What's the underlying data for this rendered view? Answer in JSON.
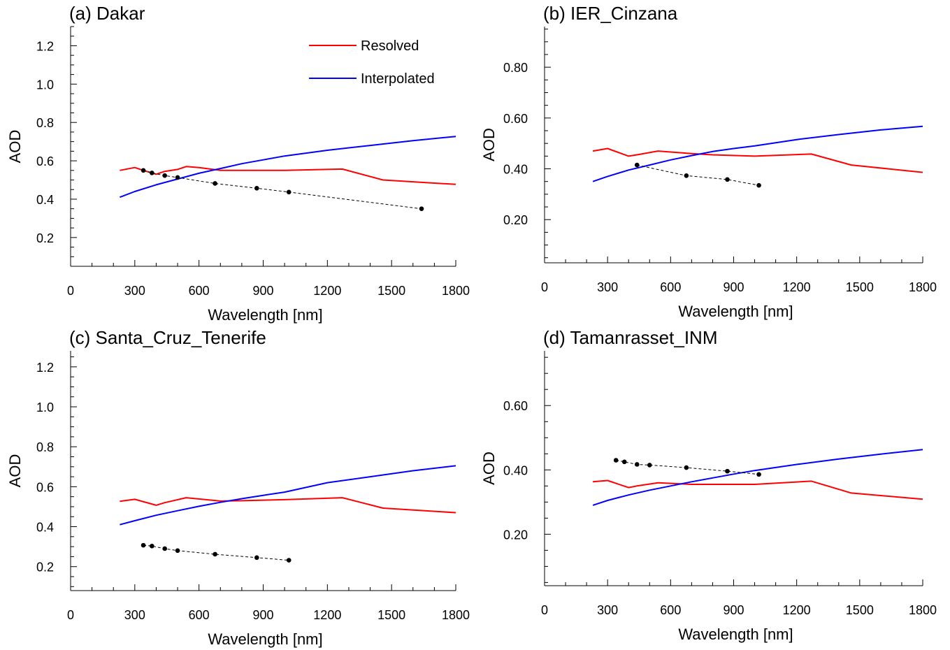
{
  "chart_data": [
    {
      "type": "line",
      "title": "(a) Dakar",
      "xlabel": "Wavelength [nm]",
      "ylabel": "AOD",
      "xlim": [
        0,
        1800
      ],
      "ylim": [
        0.05,
        1.3
      ],
      "xticks": [
        0,
        300,
        600,
        900,
        1200,
        1500,
        1800
      ],
      "xtick_labels": [
        "0",
        "300",
        "600",
        "900",
        "1200",
        "1500",
        "1800"
      ],
      "yticks": [
        0.2,
        0.4,
        0.6,
        0.8,
        1.0,
        1.2
      ],
      "ytick_labels": [
        "0.2",
        "0.4",
        "0.6",
        "0.8",
        "1.0",
        "1.2"
      ],
      "legend": {
        "position": "top-right",
        "show": true
      },
      "series": [
        {
          "name": "Resolved",
          "color": "#ff0000",
          "style": "solid",
          "x": [
            230,
            300,
            340,
            400,
            440,
            500,
            540,
            600,
            700,
            1000,
            1270,
            1460,
            1800
          ],
          "y": [
            0.55,
            0.565,
            0.55,
            0.53,
            0.545,
            0.555,
            0.57,
            0.565,
            0.55,
            0.55,
            0.557,
            0.5,
            0.477
          ]
        },
        {
          "name": "Interpolated",
          "color": "#0000ff",
          "style": "solid",
          "x": [
            230,
            300,
            400,
            500,
            600,
            700,
            800,
            900,
            1000,
            1200,
            1400,
            1600,
            1800
          ],
          "y": [
            0.41,
            0.44,
            0.475,
            0.505,
            0.535,
            0.56,
            0.585,
            0.605,
            0.625,
            0.655,
            0.68,
            0.705,
            0.727
          ]
        },
        {
          "name": "",
          "color": "#000000",
          "style": "dashed-markers",
          "x": [
            340,
            380,
            440,
            500,
            675,
            870,
            1020,
            1640
          ],
          "y": [
            0.55,
            0.537,
            0.523,
            0.513,
            0.482,
            0.457,
            0.437,
            0.35
          ]
        }
      ]
    },
    {
      "type": "line",
      "title": "(b) IER_Cinzana",
      "xlabel": "Wavelength [nm]",
      "ylabel": "AOD",
      "xlim": [
        0,
        1800
      ],
      "ylim": [
        0.03,
        0.96
      ],
      "xticks": [
        0,
        300,
        600,
        900,
        1200,
        1500,
        1800
      ],
      "xtick_labels": [
        "0",
        "300",
        "600",
        "900",
        "1200",
        "1500",
        "1800"
      ],
      "yticks": [
        0.2,
        0.4,
        0.6,
        0.8
      ],
      "ytick_labels": [
        "0.20",
        "0.40",
        "0.60",
        "0.80"
      ],
      "legend": {
        "show": false
      },
      "series": [
        {
          "name": "",
          "color": "#ff0000",
          "style": "solid",
          "x": [
            230,
            300,
            400,
            440,
            540,
            700,
            800,
            1000,
            1270,
            1460,
            1800
          ],
          "y": [
            0.47,
            0.48,
            0.45,
            0.455,
            0.47,
            0.46,
            0.455,
            0.45,
            0.458,
            0.415,
            0.386
          ]
        },
        {
          "name": "",
          "color": "#0000ff",
          "style": "solid",
          "x": [
            230,
            300,
            400,
            500,
            600,
            700,
            800,
            900,
            1000,
            1200,
            1400,
            1600,
            1800
          ],
          "y": [
            0.35,
            0.37,
            0.395,
            0.415,
            0.435,
            0.452,
            0.468,
            0.48,
            0.49,
            0.515,
            0.535,
            0.553,
            0.567
          ]
        },
        {
          "name": "",
          "color": "#000000",
          "style": "dashed-markers",
          "x": [
            440,
            675,
            870,
            1020
          ],
          "y": [
            0.415,
            0.373,
            0.358,
            0.335
          ]
        }
      ]
    },
    {
      "type": "line",
      "title": "(c) Santa_Cruz_Tenerife",
      "xlabel": "Wavelength [nm]",
      "ylabel": "AOD",
      "xlim": [
        0,
        1800
      ],
      "ylim": [
        0.08,
        1.28
      ],
      "xticks": [
        0,
        300,
        600,
        900,
        1200,
        1500,
        1800
      ],
      "xtick_labels": [
        "0",
        "300",
        "600",
        "900",
        "1200",
        "1500",
        "1800"
      ],
      "yticks": [
        0.2,
        0.4,
        0.6,
        0.8,
        1.0,
        1.2
      ],
      "ytick_labels": [
        "0.2",
        "0.4",
        "0.6",
        "0.8",
        "1.0",
        "1.2"
      ],
      "legend": {
        "show": false
      },
      "series": [
        {
          "name": "",
          "color": "#ff0000",
          "style": "solid",
          "x": [
            230,
            300,
            400,
            440,
            540,
            700,
            800,
            1000,
            1270,
            1460,
            1800
          ],
          "y": [
            0.527,
            0.537,
            0.507,
            0.52,
            0.545,
            0.528,
            0.53,
            0.535,
            0.545,
            0.493,
            0.47
          ]
        },
        {
          "name": "",
          "color": "#0000ff",
          "style": "solid",
          "x": [
            230,
            300,
            400,
            500,
            600,
            700,
            800,
            900,
            1000,
            1200,
            1400,
            1600,
            1800
          ],
          "y": [
            0.41,
            0.43,
            0.457,
            0.48,
            0.502,
            0.522,
            0.54,
            0.557,
            0.573,
            0.62,
            0.65,
            0.68,
            0.705
          ]
        },
        {
          "name": "",
          "color": "#000000",
          "style": "dashed-markers",
          "x": [
            340,
            380,
            440,
            500,
            675,
            870,
            1020
          ],
          "y": [
            0.307,
            0.303,
            0.29,
            0.28,
            0.262,
            0.245,
            0.232
          ]
        }
      ]
    },
    {
      "type": "line",
      "title": "(d) Tamanrasset_INM",
      "xlabel": "Wavelength [nm]",
      "ylabel": "AOD",
      "xlim": [
        0,
        1800
      ],
      "ylim": [
        0.04,
        0.77
      ],
      "xticks": [
        0,
        300,
        600,
        900,
        1200,
        1500,
        1800
      ],
      "xtick_labels": [
        "0",
        "300",
        "600",
        "900",
        "1200",
        "1500",
        "1800"
      ],
      "yticks": [
        0.2,
        0.4,
        0.6
      ],
      "ytick_labels": [
        "0.20",
        "0.40",
        "0.60"
      ],
      "legend": {
        "show": false
      },
      "series": [
        {
          "name": "",
          "color": "#ff0000",
          "style": "solid",
          "x": [
            230,
            300,
            400,
            440,
            540,
            700,
            800,
            1000,
            1270,
            1460,
            1800
          ],
          "y": [
            0.363,
            0.367,
            0.345,
            0.35,
            0.36,
            0.355,
            0.355,
            0.355,
            0.365,
            0.328,
            0.309
          ]
        },
        {
          "name": "",
          "color": "#0000ff",
          "style": "solid",
          "x": [
            230,
            300,
            400,
            500,
            600,
            700,
            800,
            900,
            1000,
            1200,
            1400,
            1600,
            1800
          ],
          "y": [
            0.29,
            0.305,
            0.322,
            0.337,
            0.35,
            0.363,
            0.375,
            0.387,
            0.398,
            0.417,
            0.434,
            0.449,
            0.463
          ]
        },
        {
          "name": "",
          "color": "#000000",
          "style": "dashed-markers",
          "x": [
            340,
            380,
            440,
            500,
            675,
            870,
            1020
          ],
          "y": [
            0.43,
            0.425,
            0.417,
            0.415,
            0.407,
            0.396,
            0.386
          ]
        }
      ]
    }
  ]
}
